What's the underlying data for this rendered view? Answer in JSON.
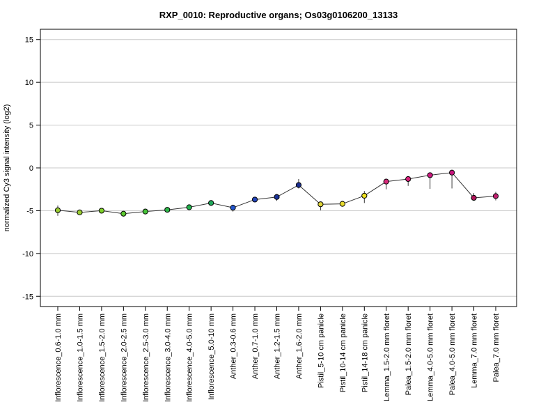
{
  "chart_data": {
    "type": "line",
    "title": "RXP_0010: Reproductive organs; Os03g0106200_13133",
    "xlabel": "",
    "ylabel": "normalized Cy3 signal intensity (log2)",
    "ylim": [
      -16.2,
      16.2
    ],
    "yticks": [
      -15,
      -10,
      -5,
      0,
      5,
      10,
      15
    ],
    "grid": true,
    "legend": "none",
    "categories": [
      "Inflorescence_0.6-1.0 mm",
      "Inflorescence_1.0-1.5 mm",
      "Inflorescence_1.5-2.0 mm",
      "Inflorescence_2.0-2.5 mm",
      "Inflorescence_2.5-3.0 mm",
      "Inflorescence_3.0-4.0 mm",
      "Inflorescence_4.0-5.0 mm",
      "Inflorescence_5.0-10 mm",
      "Anther_0.3-0.6 mm",
      "Anther_0.7-1.0 mm",
      "Anther_1.2-1.5 mm",
      "Anther_1.6-2.0 mm",
      "Pistil_5-10 cm panicle",
      "Pistil_10-14 cm panicle",
      "Pistil_14-18 cm panicle",
      "Lemma_1.5-2.0 mm floret",
      "Palea_1.5-2.0 mm floret",
      "Lemma_4.0-5.0 mm floret",
      "Palea_4.0-5.0 mm floret",
      "Lemma_7.0 mm floret",
      "Palea_7.0 mm floret"
    ],
    "series": [
      {
        "values": [
          -4.95,
          -5.2,
          -5.0,
          -5.35,
          -5.1,
          -4.9,
          -4.6,
          -4.1,
          -4.65,
          -3.7,
          -3.4,
          -2.0,
          -4.25,
          -4.2,
          -3.25,
          -1.6,
          -1.3,
          -0.85,
          -0.55,
          -3.5,
          -3.3
        ],
        "err_low": [
          -5.6,
          -5.5,
          -5.2,
          -5.45,
          -5.2,
          -5.05,
          -4.75,
          -4.2,
          -5.1,
          -3.85,
          -3.85,
          -2.4,
          -4.95,
          -4.5,
          -4.1,
          -2.5,
          -2.1,
          -2.45,
          -2.4,
          -3.7,
          -3.8
        ],
        "err_high": [
          -4.4,
          -4.9,
          -4.8,
          -5.25,
          -5.0,
          -4.75,
          -4.45,
          -3.95,
          -4.3,
          -3.55,
          -3.05,
          -1.3,
          -3.95,
          -3.85,
          -2.7,
          -1.3,
          -1.15,
          -0.6,
          -0.4,
          -2.95,
          -2.8
        ],
        "point_colors": [
          "#9ACD32",
          "#9ACD32",
          "#7FD12A",
          "#5CC930",
          "#44C238",
          "#2EB84A",
          "#22B14C",
          "#1FA85A",
          "#2255CC",
          "#2244BB",
          "#1A3399",
          "#1A2E8F",
          "#E0D53A",
          "#E8DC2E",
          "#EDE01F",
          "#D62A7A",
          "#D9207A",
          "#CC1A80",
          "#C8157E",
          "#B0145A",
          "#C02070"
        ]
      }
    ]
  }
}
